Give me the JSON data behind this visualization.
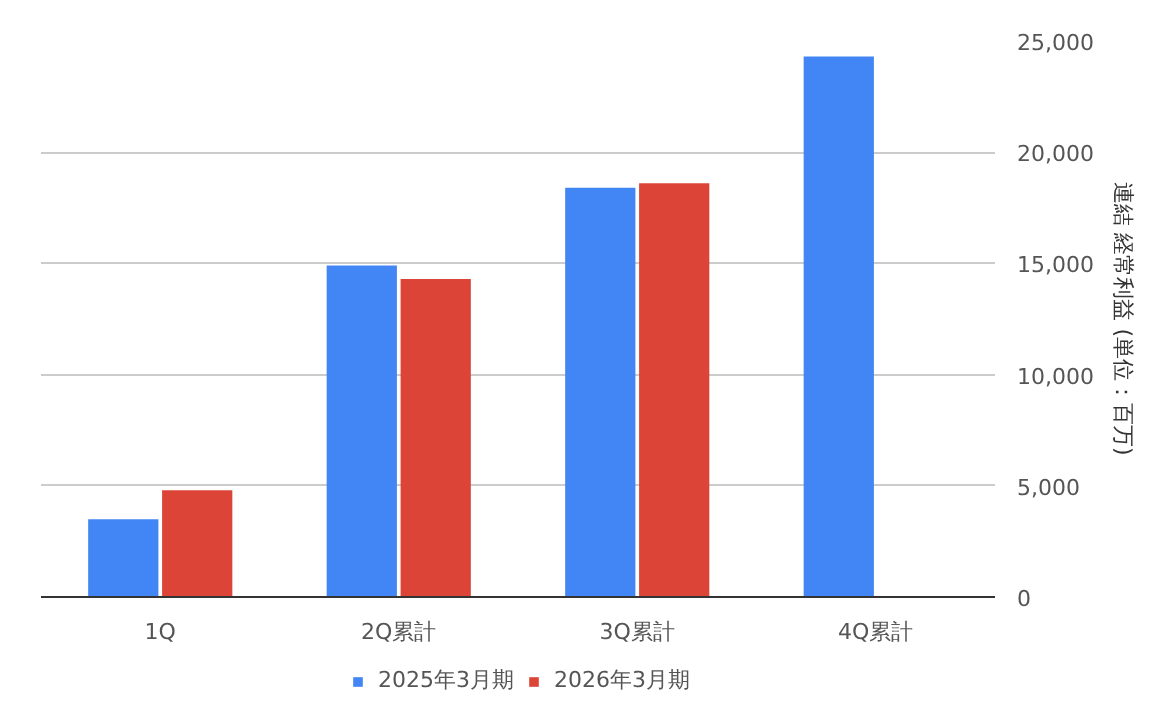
{
  "chart_data": {
    "type": "bar",
    "ylabel": "連結 経常利益 (単位：百万)",
    "categories": [
      "1Q",
      "2Q累計",
      "3Q累計",
      "4Q累計"
    ],
    "series": [
      {
        "name": "2025年3月期",
        "color": "#4285f4",
        "values": [
          3500,
          14900,
          18400,
          24300
        ]
      },
      {
        "name": "2026年3月期",
        "color": "#db4437",
        "values": [
          4800,
          14300,
          18600,
          null
        ]
      }
    ],
    "ylim": [
      0,
      25000
    ],
    "yticks": [
      {
        "value": 0,
        "label": "0"
      },
      {
        "value": 5000,
        "label": "5,000"
      },
      {
        "value": 10000,
        "label": "10,000"
      },
      {
        "value": 15000,
        "label": "15,000"
      },
      {
        "value": 20000,
        "label": "20,000"
      },
      {
        "value": 25000,
        "label": "25,000"
      }
    ],
    "grid": "y",
    "legend": "bottom"
  }
}
